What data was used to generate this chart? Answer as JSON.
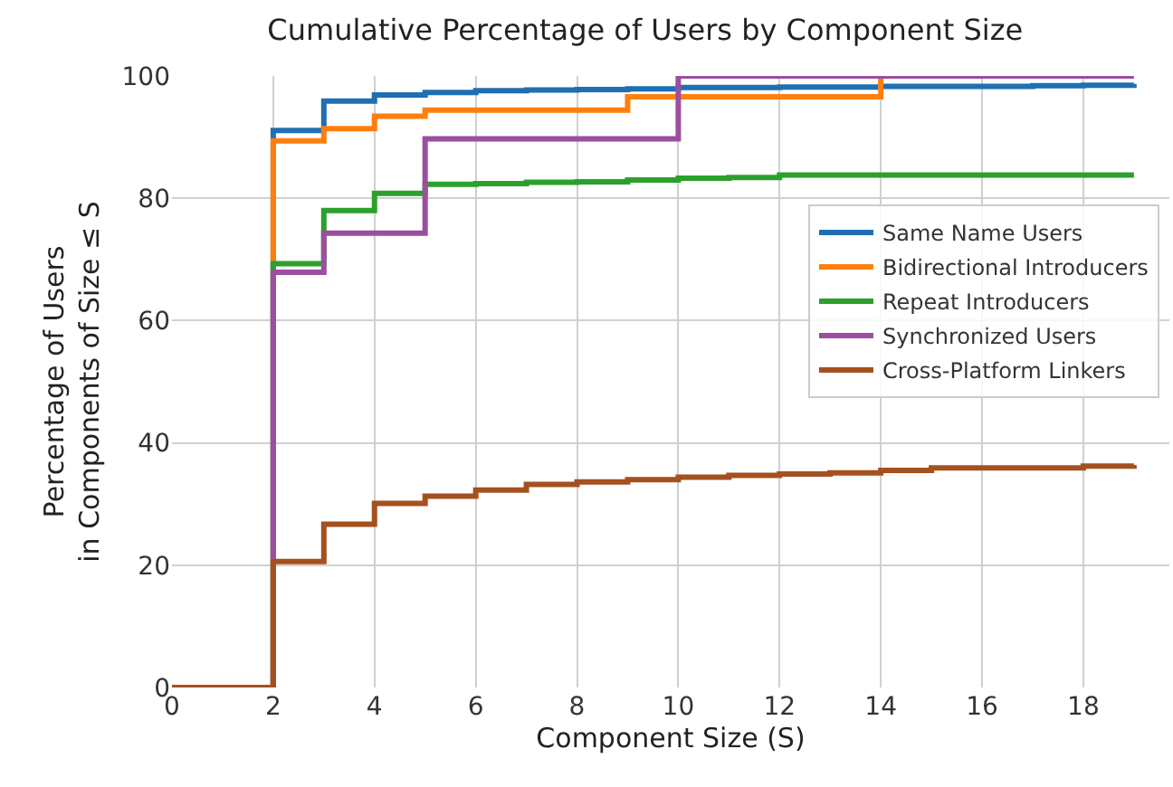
{
  "chart_data": {
    "type": "step",
    "title": "Cumulative Percentage of Users by Component Size",
    "xlabel": "Component Size (S)",
    "ylabel": "Percentage of Users\nin Components of Size ≤ S",
    "x": [
      0,
      1,
      2,
      3,
      4,
      5,
      6,
      7,
      8,
      9,
      10,
      11,
      12,
      13,
      14,
      15,
      16,
      17,
      18,
      19
    ],
    "series": [
      {
        "name": "Same Name Users",
        "color": "#1f6fb2",
        "values": [
          0,
          0,
          91.1,
          95.9,
          96.9,
          97.3,
          97.6,
          97.7,
          97.8,
          97.9,
          98.1,
          98.1,
          98.2,
          98.2,
          98.3,
          98.3,
          98.3,
          98.4,
          98.5,
          98.7
        ]
      },
      {
        "name": "Bidirectional Introducers",
        "color": "#ff7f0e",
        "values": [
          0,
          0,
          89.4,
          91.4,
          93.4,
          94.4,
          94.4,
          94.4,
          94.4,
          96.6,
          96.6,
          96.6,
          96.6,
          96.6,
          100,
          null,
          null,
          null,
          null,
          null
        ]
      },
      {
        "name": "Repeat Introducers",
        "color": "#2ca02c",
        "values": [
          0,
          0,
          69.3,
          78,
          80.8,
          82.3,
          82.4,
          82.6,
          82.7,
          83,
          83.3,
          83.4,
          83.8,
          83.8,
          83.8,
          83.8,
          83.8,
          83.8,
          83.8,
          83.8
        ]
      },
      {
        "name": "Synchronized Users",
        "color": "#9b4f9f",
        "values": [
          0,
          0,
          67.9,
          74.3,
          74.3,
          89.7,
          89.7,
          89.7,
          89.7,
          89.7,
          100,
          100,
          100,
          100,
          100,
          100,
          100,
          100,
          100,
          100
        ]
      },
      {
        "name": "Cross-Platform Linkers",
        "color": "#a5501f",
        "values": [
          0,
          0,
          20.6,
          26.7,
          30.1,
          31.3,
          32.3,
          33.2,
          33.6,
          34,
          34.4,
          34.7,
          34.9,
          35.1,
          35.5,
          35.9,
          35.9,
          35.9,
          36.2,
          36.4
        ]
      }
    ],
    "xlim": [
      0,
      19.7
    ],
    "xticks": [
      0,
      2,
      4,
      6,
      8,
      10,
      12,
      14,
      16,
      18
    ],
    "ylim": [
      0,
      100
    ],
    "yticks": [
      0,
      20,
      40,
      60,
      80,
      100
    ],
    "grid": true,
    "legend": "right",
    "line_style": "solid"
  }
}
